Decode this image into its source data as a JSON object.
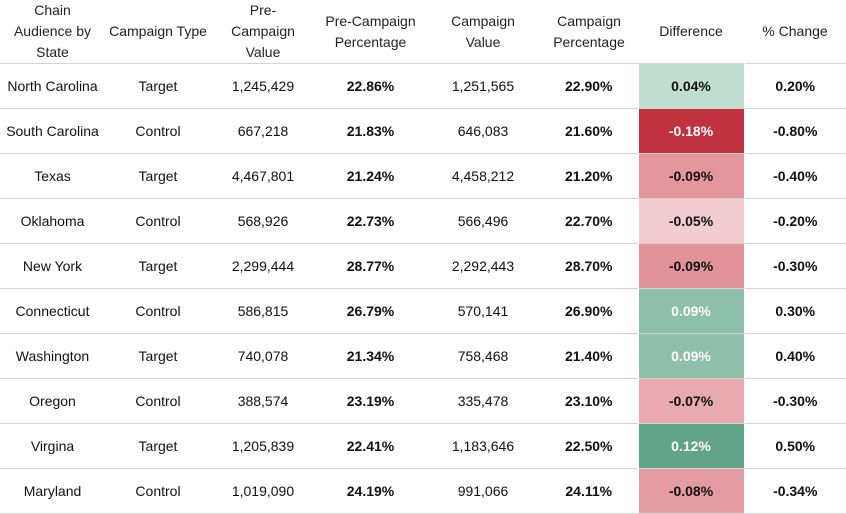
{
  "chart_data": {
    "type": "table",
    "columns": [
      "Chain Audience by State",
      "Campaign Type",
      "Pre-Campaign Value",
      "Pre-Campaign Percentage",
      "Campaign Value",
      "Campaign Percentage",
      "Difference",
      "% Change"
    ],
    "rows": [
      {
        "state": "North Carolina",
        "type": "Target",
        "pre_value": "1,245,429",
        "pre_pct": "22.86%",
        "camp_value": "1,251,565",
        "camp_pct": "22.90%",
        "diff": "0.04%",
        "change": "0.20%",
        "diff_color": "#c0ddd2",
        "diff_text_color": "#111111"
      },
      {
        "state": "South Carolina",
        "type": "Control",
        "pre_value": "667,218",
        "pre_pct": "21.83%",
        "camp_value": "646,083",
        "camp_pct": "21.60%",
        "diff": "-0.18%",
        "change": "-0.80%",
        "diff_color": "#c0323f",
        "diff_text_color": "#ffffff"
      },
      {
        "state": "Texas",
        "type": "Target",
        "pre_value": "4,467,801",
        "pre_pct": "21.24%",
        "camp_value": "4,458,212",
        "camp_pct": "21.20%",
        "diff": "-0.09%",
        "change": "-0.40%",
        "diff_color": "#e3969c",
        "diff_text_color": "#111111"
      },
      {
        "state": "Oklahoma",
        "type": "Control",
        "pre_value": "568,926",
        "pre_pct": "22.73%",
        "camp_value": "566,496",
        "camp_pct": "22.70%",
        "diff": "-0.05%",
        "change": "-0.20%",
        "diff_color": "#f2ccd0",
        "diff_text_color": "#111111"
      },
      {
        "state": "New York",
        "type": "Target",
        "pre_value": "2,299,444",
        "pre_pct": "28.77%",
        "camp_value": "2,292,443",
        "camp_pct": "28.70%",
        "diff": "-0.09%",
        "change": "-0.30%",
        "diff_color": "#e19399",
        "diff_text_color": "#111111"
      },
      {
        "state": "Connecticut",
        "type": "Control",
        "pre_value": "586,815",
        "pre_pct": "26.79%",
        "camp_value": "570,141",
        "camp_pct": "26.90%",
        "diff": "0.09%",
        "change": "0.30%",
        "diff_color": "#8ebfab",
        "diff_text_color": "#ffffff"
      },
      {
        "state": "Washington",
        "type": "Target",
        "pre_value": "740,078",
        "pre_pct": "21.34%",
        "camp_value": "758,468",
        "camp_pct": "21.40%",
        "diff": "0.09%",
        "change": "0.40%",
        "diff_color": "#8ebfab",
        "diff_text_color": "#ffffff"
      },
      {
        "state": "Oregon",
        "type": "Control",
        "pre_value": "388,574",
        "pre_pct": "23.19%",
        "camp_value": "335,478",
        "camp_pct": "23.10%",
        "diff": "-0.07%",
        "change": "-0.30%",
        "diff_color": "#e8aab0",
        "diff_text_color": "#111111"
      },
      {
        "state": "Virgina",
        "type": "Target",
        "pre_value": "1,205,839",
        "pre_pct": "22.41%",
        "camp_value": "1,183,646",
        "camp_pct": "22.50%",
        "diff": "0.12%",
        "change": "0.50%",
        "diff_color": "#62a48a",
        "diff_text_color": "#ffffff"
      },
      {
        "state": "Maryland",
        "type": "Control",
        "pre_value": "1,019,090",
        "pre_pct": "24.19%",
        "camp_value": "991,066",
        "camp_pct": "24.11%",
        "diff": "-0.08%",
        "change": "-0.34%",
        "diff_color": "#e39ca2",
        "diff_text_color": "#111111"
      }
    ]
  }
}
